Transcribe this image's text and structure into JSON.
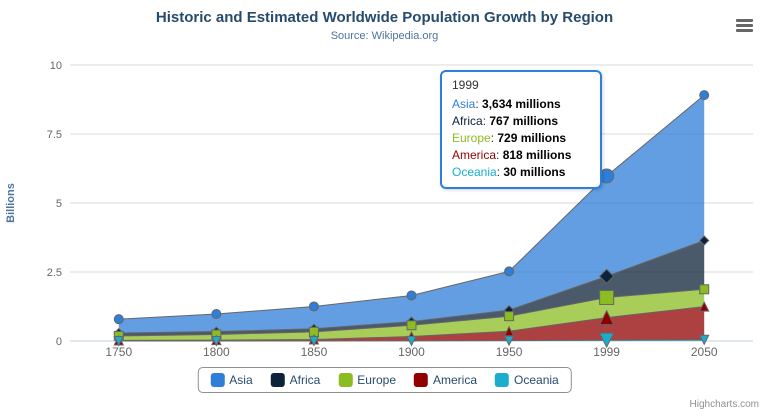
{
  "header": {
    "title": "Historic and Estimated Worldwide Population Growth by Region",
    "subtitle": "Source: Wikipedia.org"
  },
  "chart_data": {
    "type": "area",
    "stacking": "normal",
    "title": "Historic and Estimated Worldwide Population Growth by Region",
    "subtitle": "Source: Wikipedia.org",
    "categories": [
      "1750",
      "1800",
      "1850",
      "1900",
      "1950",
      "1999",
      "2050"
    ],
    "series": [
      {
        "name": "Asia",
        "color": "#2f7ed8",
        "marker": "circle",
        "values": [
          502,
          635,
          809,
          947,
          1402,
          3634,
          5268
        ]
      },
      {
        "name": "Africa",
        "color": "#0d233a",
        "marker": "diamond",
        "values": [
          106,
          107,
          111,
          133,
          221,
          767,
          1766
        ]
      },
      {
        "name": "Europe",
        "color": "#8bbc21",
        "marker": "square",
        "values": [
          163,
          203,
          276,
          408,
          547,
          729,
          628
        ]
      },
      {
        "name": "America",
        "color": "#910000",
        "marker": "triangle",
        "values": [
          18,
          31,
          54,
          156,
          339,
          818,
          1201
        ]
      },
      {
        "name": "Oceania",
        "color": "#1aadce",
        "marker": "triangle-down",
        "values": [
          2,
          2,
          2,
          6,
          13,
          30,
          46
        ]
      }
    ],
    "values_unit": "millions",
    "ylabel": "Billions",
    "yticks": [
      0,
      2.5,
      5,
      7.5,
      10
    ],
    "ytick_labels": [
      "0",
      "2.5",
      "5",
      "7.5",
      "10"
    ],
    "ylim": [
      0,
      10
    ],
    "grid": true,
    "legend_position": "bottom",
    "hover_index": 5,
    "colors": {
      "grid_line": "#d8d8d8",
      "axis_line": "#c0d0e0",
      "series_outline": "#666666",
      "axis_label": "#666666",
      "y_axis_title": "#4d759e",
      "title": "#274b6d"
    }
  },
  "tooltip": {
    "header": "1999",
    "rows": [
      {
        "series": "Asia",
        "value": "3,634 millions"
      },
      {
        "series": "Africa",
        "value": "767 millions"
      },
      {
        "series": "Europe",
        "value": "729 millions"
      },
      {
        "series": "America",
        "value": "818 millions"
      },
      {
        "series": "Oceania",
        "value": "30 millions"
      }
    ]
  },
  "credits": {
    "label": "Highcharts.com"
  }
}
